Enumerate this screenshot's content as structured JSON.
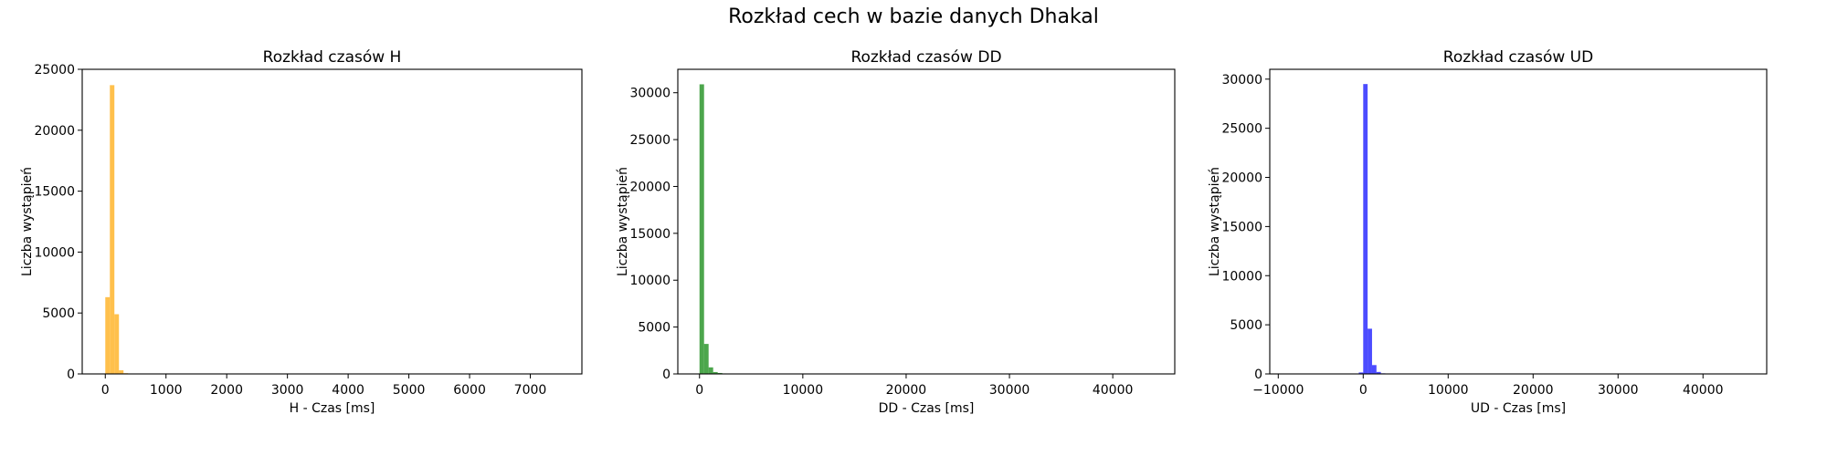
{
  "figure_title": "Rozkład cech w bazie danych Dhakal",
  "chart_data": [
    {
      "type": "bar",
      "title": "Rozkład czasów H",
      "xlabel": "H - Czas [ms]",
      "ylabel": "Liczba wystąpień",
      "color": "#ffa500",
      "xlim": [
        -380,
        7850
      ],
      "ylim": [
        0,
        25000
      ],
      "xticks": [
        0,
        1000,
        2000,
        3000,
        4000,
        5000,
        6000,
        7000
      ],
      "yticks": [
        0,
        5000,
        10000,
        15000,
        20000,
        25000
      ],
      "bin_width": 75,
      "bins": [
        {
          "x": 0,
          "count": 6300
        },
        {
          "x": 75,
          "count": 23700
        },
        {
          "x": 150,
          "count": 4900
        },
        {
          "x": 225,
          "count": 300
        },
        {
          "x": 300,
          "count": 60
        }
      ]
    },
    {
      "type": "bar",
      "title": "Rozkład czasów DD",
      "xlabel": "DD - Czas [ms]",
      "ylabel": "Liczba wystąpień",
      "color": "#008000",
      "xlim": [
        -2100,
        46000
      ],
      "ylim": [
        0,
        32500
      ],
      "xticks": [
        0,
        10000,
        20000,
        30000,
        40000
      ],
      "yticks": [
        0,
        5000,
        10000,
        15000,
        20000,
        25000,
        30000
      ],
      "bin_width": 440,
      "bins": [
        {
          "x": 0,
          "count": 30900
        },
        {
          "x": 440,
          "count": 3200
        },
        {
          "x": 880,
          "count": 700
        },
        {
          "x": 1320,
          "count": 200
        },
        {
          "x": 1760,
          "count": 100
        },
        {
          "x": 2200,
          "count": 50
        }
      ]
    },
    {
      "type": "bar",
      "title": "Rozkład czasów UD",
      "xlabel": "UD - Czas [ms]",
      "ylabel": "Liczba wystąpień",
      "color": "#0000ff",
      "xlim": [
        -11000,
        47500
      ],
      "ylim": [
        0,
        31000
      ],
      "xticks": [
        -10000,
        0,
        10000,
        20000,
        30000,
        40000
      ],
      "yticks": [
        0,
        5000,
        10000,
        15000,
        20000,
        25000,
        30000
      ],
      "bin_width": 520,
      "bins": [
        {
          "x": -520,
          "count": 150
        },
        {
          "x": 0,
          "count": 29500
        },
        {
          "x": 520,
          "count": 4600
        },
        {
          "x": 1040,
          "count": 900
        },
        {
          "x": 1560,
          "count": 200
        },
        {
          "x": 2080,
          "count": 60
        }
      ]
    }
  ]
}
